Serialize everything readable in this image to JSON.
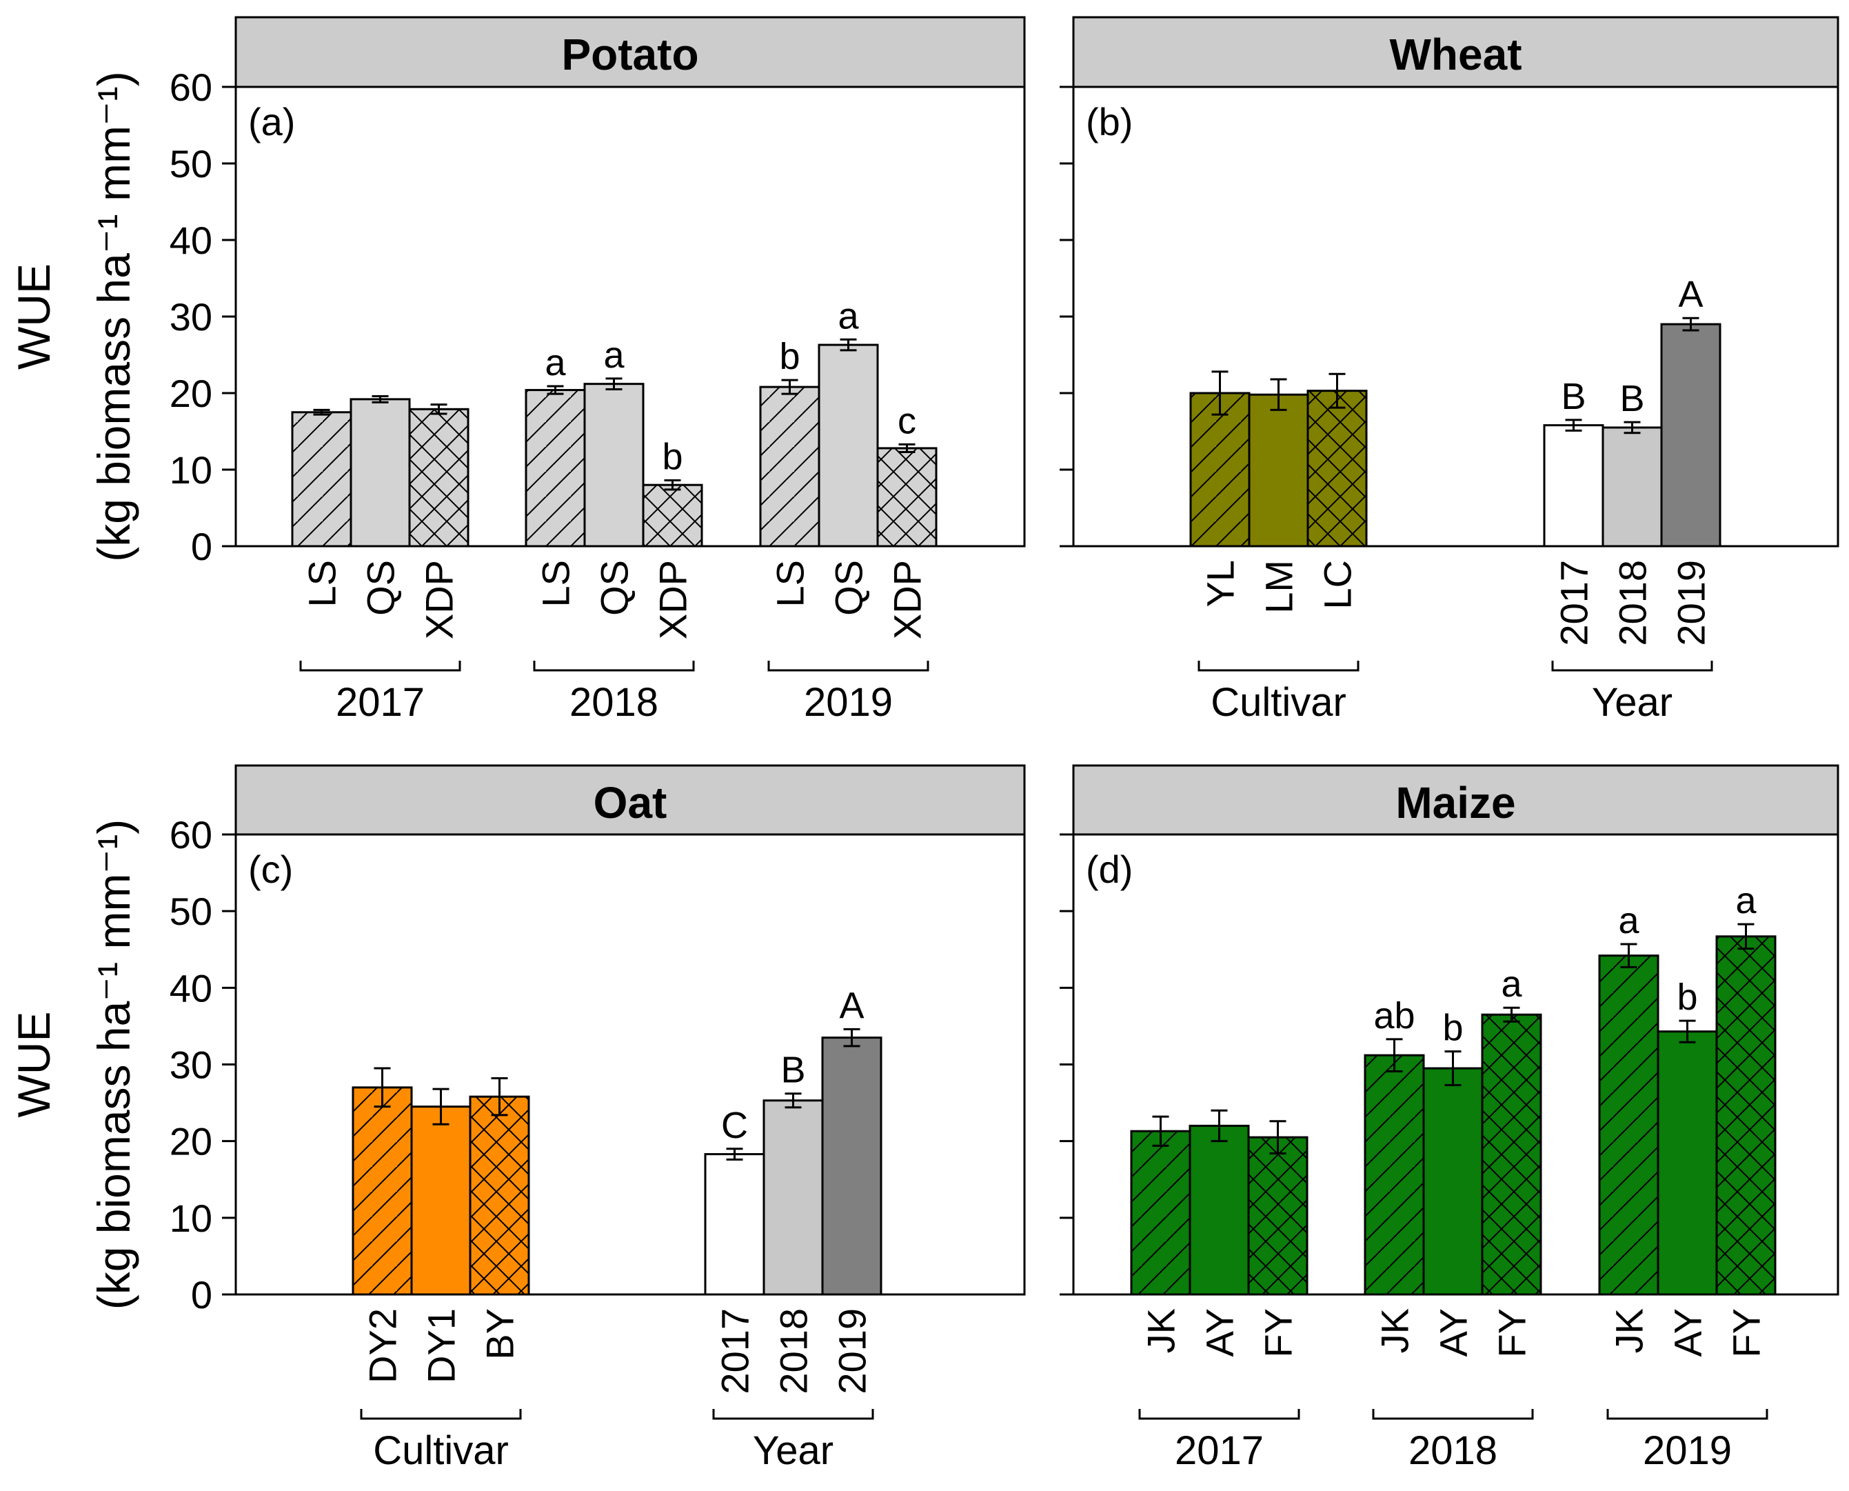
{
  "chart_data": [
    {
      "type": "bar",
      "panel": "(a)",
      "title": "Potato",
      "ylabel": "WUE",
      "ylabel_units": "(kg biomass ha⁻¹ mm⁻¹)",
      "ylim": [
        0,
        60
      ],
      "yticks": [
        "0",
        "10",
        "20",
        "30",
        "40",
        "50",
        "60"
      ],
      "fill_color": "#d3d3d3",
      "groups": [
        {
          "label": "2017",
          "bars": [
            {
              "label": "LS",
              "value": 17.5,
              "err": 0.3,
              "pattern": "hatch",
              "sig": ""
            },
            {
              "label": "QS",
              "value": 19.2,
              "err": 0.4,
              "pattern": "solid",
              "sig": ""
            },
            {
              "label": "XDP",
              "value": 17.9,
              "err": 0.6,
              "pattern": "cross",
              "sig": ""
            }
          ]
        },
        {
          "label": "2018",
          "bars": [
            {
              "label": "LS",
              "value": 20.4,
              "err": 0.5,
              "pattern": "hatch",
              "sig": "a"
            },
            {
              "label": "QS",
              "value": 21.2,
              "err": 0.7,
              "pattern": "solid",
              "sig": "a"
            },
            {
              "label": "XDP",
              "value": 8.0,
              "err": 0.6,
              "pattern": "cross",
              "sig": "b"
            }
          ]
        },
        {
          "label": "2019",
          "bars": [
            {
              "label": "LS",
              "value": 20.8,
              "err": 0.9,
              "pattern": "hatch",
              "sig": "b"
            },
            {
              "label": "QS",
              "value": 26.3,
              "err": 0.7,
              "pattern": "solid",
              "sig": "a"
            },
            {
              "label": "XDP",
              "value": 12.8,
              "err": 0.5,
              "pattern": "cross",
              "sig": "c"
            }
          ]
        }
      ]
    },
    {
      "type": "bar",
      "panel": "(b)",
      "title": "Wheat",
      "ylim": [
        0,
        60
      ],
      "groups": [
        {
          "label": "Cultivar",
          "bars": [
            {
              "label": "YL",
              "value": 20.0,
              "err": 2.8,
              "pattern": "hatch",
              "color": "#808000",
              "sig": ""
            },
            {
              "label": "LM",
              "value": 19.8,
              "err": 2.0,
              "pattern": "solid",
              "color": "#808000",
              "sig": ""
            },
            {
              "label": "LC",
              "value": 20.3,
              "err": 2.2,
              "pattern": "cross",
              "color": "#808000",
              "sig": ""
            }
          ]
        },
        {
          "label": "Year",
          "bars": [
            {
              "label": "2017",
              "value": 15.8,
              "err": 0.7,
              "pattern": "solid",
              "color": "#ffffff",
              "sig": "B"
            },
            {
              "label": "2018",
              "value": 15.5,
              "err": 0.7,
              "pattern": "solid",
              "color": "#c8c8c8",
              "sig": "B"
            },
            {
              "label": "2019",
              "value": 29.0,
              "err": 0.8,
              "pattern": "solid",
              "color": "#808080",
              "sig": "A"
            }
          ]
        }
      ]
    },
    {
      "type": "bar",
      "panel": "(c)",
      "title": "Oat",
      "ylabel": "WUE",
      "ylabel_units": "(kg biomass ha⁻¹ mm⁻¹)",
      "ylim": [
        0,
        60
      ],
      "yticks": [
        "0",
        "10",
        "20",
        "30",
        "40",
        "50",
        "60"
      ],
      "groups": [
        {
          "label": "Cultivar",
          "bars": [
            {
              "label": "DY2",
              "value": 27.0,
              "err": 2.5,
              "pattern": "hatch",
              "color": "#ff8c00",
              "sig": ""
            },
            {
              "label": "DY1",
              "value": 24.5,
              "err": 2.3,
              "pattern": "solid",
              "color": "#ff8c00",
              "sig": ""
            },
            {
              "label": "BY",
              "value": 25.8,
              "err": 2.4,
              "pattern": "cross",
              "color": "#ff8c00",
              "sig": ""
            }
          ]
        },
        {
          "label": "Year",
          "bars": [
            {
              "label": "2017",
              "value": 18.3,
              "err": 0.7,
              "pattern": "solid",
              "color": "#ffffff",
              "sig": "C"
            },
            {
              "label": "2018",
              "value": 25.3,
              "err": 0.9,
              "pattern": "solid",
              "color": "#c8c8c8",
              "sig": "B"
            },
            {
              "label": "2019",
              "value": 33.5,
              "err": 1.1,
              "pattern": "solid",
              "color": "#808080",
              "sig": "A"
            }
          ]
        }
      ]
    },
    {
      "type": "bar",
      "panel": "(d)",
      "title": "Maize",
      "ylim": [
        0,
        60
      ],
      "fill_color": "#0a7d0a",
      "groups": [
        {
          "label": "2017",
          "bars": [
            {
              "label": "JK",
              "value": 21.3,
              "err": 1.9,
              "pattern": "hatch",
              "sig": ""
            },
            {
              "label": "AY",
              "value": 22.0,
              "err": 2.0,
              "pattern": "solid",
              "sig": ""
            },
            {
              "label": "FY",
              "value": 20.5,
              "err": 2.1,
              "pattern": "cross",
              "sig": ""
            }
          ]
        },
        {
          "label": "2018",
          "bars": [
            {
              "label": "JK",
              "value": 31.2,
              "err": 2.1,
              "pattern": "hatch",
              "sig": "ab"
            },
            {
              "label": "AY",
              "value": 29.5,
              "err": 2.2,
              "pattern": "solid",
              "sig": "b"
            },
            {
              "label": "FY",
              "value": 36.5,
              "err": 0.9,
              "pattern": "cross",
              "sig": "a"
            }
          ]
        },
        {
          "label": "2019",
          "bars": [
            {
              "label": "JK",
              "value": 44.2,
              "err": 1.5,
              "pattern": "hatch",
              "sig": "a"
            },
            {
              "label": "AY",
              "value": 34.3,
              "err": 1.4,
              "pattern": "solid",
              "sig": "b"
            },
            {
              "label": "FY",
              "value": 46.7,
              "err": 1.6,
              "pattern": "cross",
              "sig": "a"
            }
          ]
        }
      ]
    }
  ]
}
